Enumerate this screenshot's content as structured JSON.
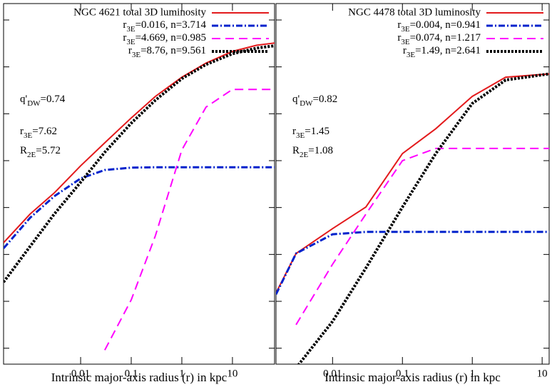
{
  "chart_data": [
    {
      "type": "line",
      "log_x": true,
      "xlabel": "Intrinsic major-axis radius (r) in kpc",
      "xlim": [
        0.0003,
        68
      ],
      "xticks": [
        0.01,
        0.1,
        1,
        10
      ],
      "ylim": [
        0.66,
        8.35
      ],
      "yticks": [
        1,
        2,
        3,
        4,
        5,
        6,
        7,
        8
      ],
      "show_ytick_labels": false,
      "legend": "top-right",
      "x": [
        0.0003,
        0.001,
        0.003,
        0.01,
        0.03,
        0.1,
        0.3,
        1,
        3,
        10,
        30,
        68
      ],
      "series": [
        {
          "name": "NGC 4621 total 3D luminosity",
          "color": "#e31a1c",
          "style": "solid",
          "values": [
            3.25,
            3.86,
            4.31,
            4.89,
            5.38,
            5.91,
            6.37,
            6.78,
            7.08,
            7.33,
            7.46,
            7.51
          ]
        },
        {
          "name": "r3E=0.016, n=3.714",
          "color": "#0022cc",
          "style": "dashdot",
          "values": [
            3.13,
            3.78,
            4.24,
            4.62,
            4.8,
            4.85,
            4.86,
            4.86,
            4.86,
            4.86,
            4.86,
            4.86
          ]
        },
        {
          "name": "r3E=4.669, n=0.985",
          "color": "#ff00ff",
          "style": "dashed",
          "values": [
            null,
            null,
            null,
            null,
            0.96,
            2.03,
            3.4,
            5.23,
            6.14,
            6.52,
            6.52,
            6.52
          ]
        },
        {
          "name": "r3E=8.76, n=9.561",
          "color": "#000000",
          "style": "dotted",
          "values": [
            2.41,
            3.17,
            3.86,
            4.54,
            5.18,
            5.8,
            6.29,
            6.75,
            7.05,
            7.28,
            7.4,
            7.45
          ]
        }
      ],
      "annotations": [
        "q'DW=0.74",
        "r3E=7.62",
        "R2E=5.72"
      ]
    },
    {
      "type": "line",
      "log_x": true,
      "xlabel": "Intrinsic major-axis radius (r) in kpc",
      "xlim": [
        0.00155,
        12.6
      ],
      "xticks": [
        0.01,
        0.1,
        1,
        10
      ],
      "ylim": [
        0.66,
        8.35
      ],
      "yticks": [
        1,
        2,
        3,
        4,
        5,
        6,
        7,
        8
      ],
      "show_ytick_labels": false,
      "legend": "top-right",
      "x": [
        0.00155,
        0.003,
        0.01,
        0.03,
        0.1,
        0.3,
        1,
        3,
        12.6
      ],
      "series": [
        {
          "name": "NGC 4478 total 3D luminosity",
          "color": "#e31a1c",
          "style": "solid",
          "values": [
            2.18,
            3.02,
            3.55,
            4.01,
            5.15,
            5.68,
            6.37,
            6.78,
            6.85
          ]
        },
        {
          "name": "r3E=0.004, n=0.941",
          "color": "#0022cc",
          "style": "dashdot",
          "values": [
            2.15,
            3.02,
            3.43,
            3.48,
            3.48,
            3.48,
            3.48,
            3.48,
            3.48
          ]
        },
        {
          "name": "r3E=0.074, n=1.217",
          "color": "#ff00ff",
          "style": "dashed",
          "values": [
            null,
            1.5,
            2.79,
            3.86,
            5.0,
            5.26,
            5.26,
            5.26,
            5.26
          ]
        },
        {
          "name": "r3E=1.49, n=2.641",
          "color": "#000000",
          "style": "dotted",
          "values": [
            null,
            0.58,
            1.57,
            2.71,
            4.01,
            5.15,
            6.22,
            6.72,
            6.85
          ]
        }
      ],
      "annotations": [
        "q'DW=0.82",
        "r3E=1.45",
        "R2E=1.08"
      ]
    }
  ]
}
